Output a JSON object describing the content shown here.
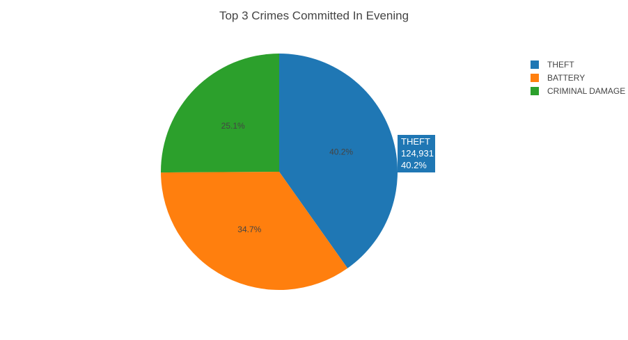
{
  "chart_data": {
    "type": "pie",
    "title": "Top 3 Crimes Committed In Evening",
    "categories": [
      "THEFT",
      "BATTERY",
      "CRIMINAL DAMAGE"
    ],
    "values": [
      124931,
      107840,
      78004
    ],
    "percent_labels": [
      "40.2%",
      "34.7%",
      "25.1%"
    ],
    "colors": [
      "#1f77b4",
      "#ff7f0e",
      "#2ca02c"
    ],
    "legend": {
      "placement": "top-right",
      "entries": [
        "THEFT",
        "BATTERY",
        "CRIMINAL DAMAGE"
      ]
    },
    "hover": {
      "label": "THEFT",
      "value": "124,931",
      "percent": "40.2%",
      "color": "#1f77b4"
    }
  }
}
